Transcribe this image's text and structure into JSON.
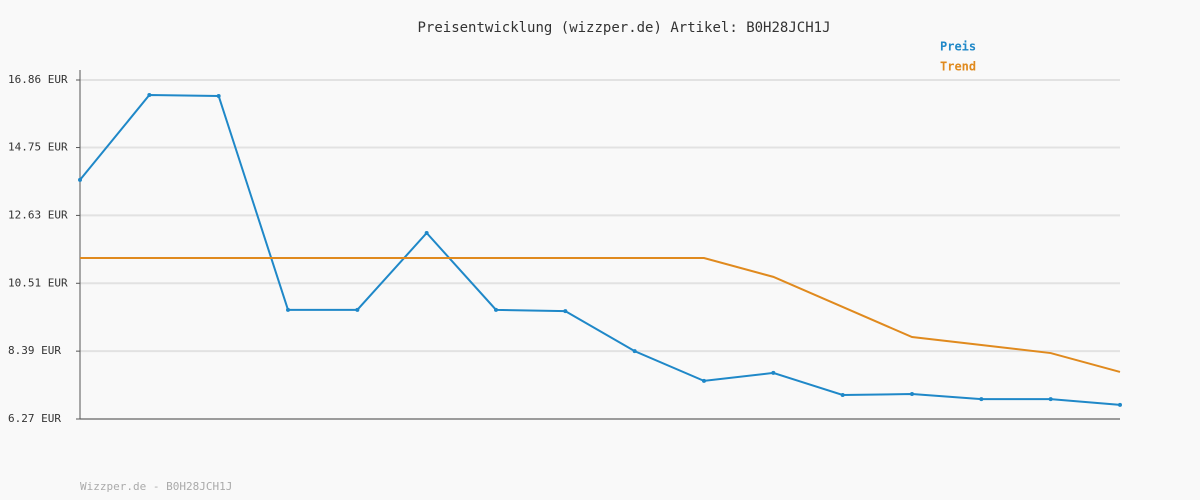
{
  "chart_data": {
    "type": "line",
    "title": "Preisentwicklung (wizzper.de) Artikel: B0H28JCH1J",
    "footer": "Wizzper.de - B0H28JCH1J",
    "categories": [
      null,
      null,
      null,
      null,
      null,
      null,
      null,
      null,
      null,
      null,
      null,
      null,
      null,
      null,
      null,
      null
    ],
    "series": [
      {
        "name": "Preis",
        "color": "#1f88c8",
        "values": [
          13.74,
          16.39,
          16.36,
          9.68,
          9.68,
          12.08,
          9.68,
          9.64,
          8.39,
          7.46,
          7.71,
          7.02,
          7.05,
          6.89,
          6.89,
          6.71
        ]
      },
      {
        "name": "Trend",
        "color": "#e08a1e",
        "values": [
          11.3,
          11.3,
          11.3,
          11.3,
          11.3,
          11.3,
          11.3,
          11.3,
          11.3,
          11.3,
          10.71,
          9.77,
          8.83,
          8.58,
          8.33,
          7.74
        ]
      }
    ],
    "ylim": [
      6.27,
      16.86
    ],
    "yticks": [
      {
        "value": 6.27,
        "label": "6.27 EUR"
      },
      {
        "value": 8.39,
        "label": "8.39 EUR"
      },
      {
        "value": 10.51,
        "label": "10.51 EUR"
      },
      {
        "value": 12.63,
        "label": "12.63 EUR"
      },
      {
        "value": 14.75,
        "label": "14.75 EUR"
      },
      {
        "value": 16.86,
        "label": "16.86 EUR"
      }
    ],
    "grid": true,
    "legend": "top-right"
  }
}
